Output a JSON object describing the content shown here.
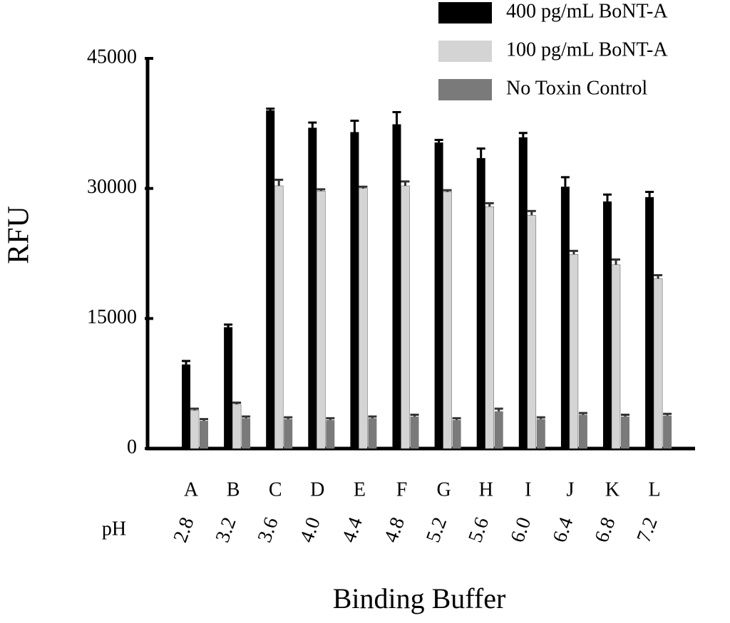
{
  "chart_data": {
    "type": "bar",
    "y_label": "RFU",
    "x_label": "Binding Buffer",
    "ph_label": "pH",
    "categories": [
      "A",
      "B",
      "C",
      "D",
      "E",
      "F",
      "G",
      "H",
      "I",
      "J",
      "K",
      "L"
    ],
    "ph_values": [
      "2.8",
      "3.2",
      "3.6",
      "4.0",
      "4.4",
      "4.8",
      "5.2",
      "5.6",
      "6.0",
      "6.4",
      "6.8",
      "7.2"
    ],
    "ylim": [
      0,
      45000
    ],
    "yticks": [
      0,
      15000,
      30000,
      45000
    ],
    "series": [
      {
        "name": "400 pg/mL BoNT-A",
        "color": "#000000",
        "values": [
          9700,
          14000,
          39000,
          37000,
          36500,
          37400,
          35300,
          33500,
          35900,
          30200,
          28500,
          29000
        ],
        "errors": [
          400,
          300,
          200,
          600,
          1300,
          1400,
          300,
          1100,
          500,
          1100,
          800,
          600
        ]
      },
      {
        "name": "100 pg/mL BoNT-A",
        "color": "#d4d4d4",
        "values": [
          4400,
          5100,
          30300,
          29700,
          30000,
          30300,
          29600,
          27900,
          26900,
          22400,
          21200,
          19600
        ],
        "errors": [
          200,
          200,
          700,
          200,
          200,
          500,
          200,
          400,
          500,
          400,
          600,
          400
        ]
      },
      {
        "name": "No Toxin Control",
        "color": "#7a7a7a",
        "values": [
          3200,
          3500,
          3400,
          3300,
          3500,
          3700,
          3300,
          4300,
          3400,
          3900,
          3700,
          3800
        ],
        "errors": [
          200,
          200,
          200,
          200,
          200,
          200,
          200,
          300,
          200,
          200,
          200,
          200
        ]
      }
    ]
  }
}
